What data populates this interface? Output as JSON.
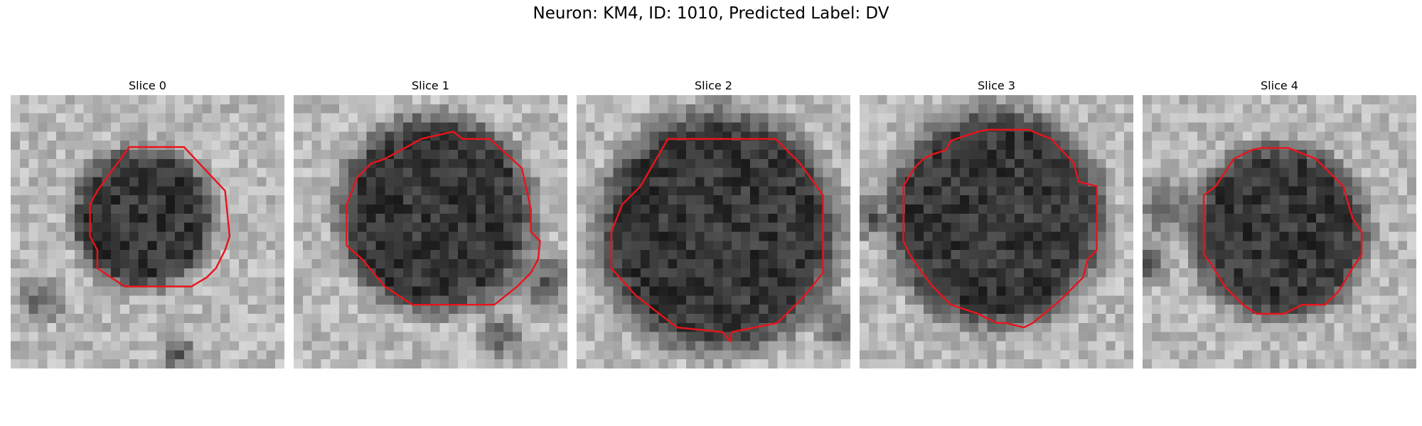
{
  "suptitle": "Neuron: KM4, ID: 1010, Predicted Label: DV",
  "contour_color": "#e8141b",
  "panels": [
    {
      "title": "Slice 0"
    },
    {
      "title": "Slice 1"
    },
    {
      "title": "Slice 2"
    },
    {
      "title": "Slice 3"
    },
    {
      "title": "Slice 4"
    }
  ]
}
